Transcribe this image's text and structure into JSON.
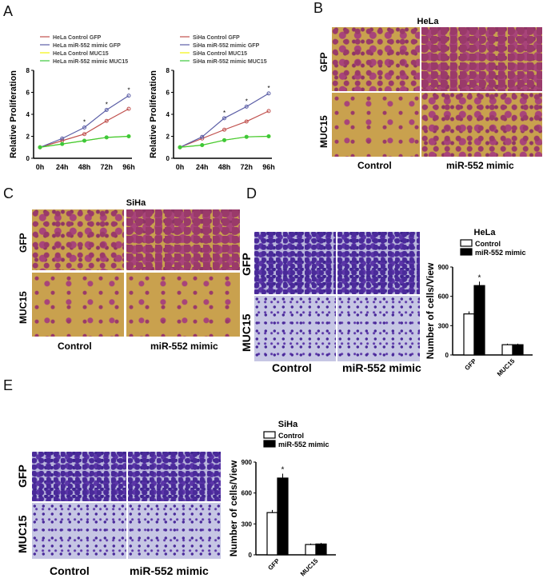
{
  "panels": {
    "a": "A",
    "b": "B",
    "c": "C",
    "d": "D",
    "e": "E"
  },
  "images": {
    "b": {
      "title": "HeLa",
      "rows": [
        "GFP",
        "MUC15"
      ],
      "cols": [
        "Control",
        "miR-552 mimic"
      ]
    },
    "c": {
      "title": "SiHa",
      "rows": [
        "GFP",
        "MUC15"
      ],
      "cols": [
        "Control",
        "miR-552 mimic"
      ]
    },
    "d": {
      "rows": [
        "GFP",
        "MUC15"
      ],
      "cols": [
        "Control",
        "miR-552 mimic"
      ]
    },
    "e": {
      "rows": [
        "GFP",
        "MUC15"
      ],
      "cols": [
        "Control",
        "miR-552 mimic"
      ]
    }
  },
  "colors": {
    "control_gfp": "#c0504d",
    "mimic_gfp": "#5b5ea6",
    "control_muc15": "#f2f20a",
    "mimic_muc15": "#3cc83c"
  },
  "chart_data": [
    {
      "type": "line",
      "ylabel": "Relative Proliferation",
      "categories": [
        "0h",
        "24h",
        "48h",
        "72h",
        "96h"
      ],
      "ylim": [
        0,
        8
      ],
      "yticks": [
        0,
        2,
        4,
        6,
        8
      ],
      "legend": "top-left",
      "series": [
        {
          "name": "HeLa Control GFP",
          "values": [
            1,
            1.6,
            2.2,
            3.4,
            4.5
          ]
        },
        {
          "name": "HeLa miR-552 mimic GFP",
          "values": [
            1,
            1.8,
            2.8,
            4.4,
            5.7
          ]
        },
        {
          "name": "HeLa Control MUC15",
          "values": [
            1,
            1.3,
            1.6,
            1.9,
            2.0
          ]
        },
        {
          "name": "HeLa miR-552 mimic MUC15",
          "values": [
            1,
            1.3,
            1.6,
            1.9,
            2.0
          ]
        }
      ],
      "annotations": [
        "*",
        "*",
        "*"
      ]
    },
    {
      "type": "line",
      "ylabel": "Relative Proliferation",
      "categories": [
        "0h",
        "24h",
        "48h",
        "72h",
        "96h"
      ],
      "ylim": [
        0,
        8
      ],
      "yticks": [
        0,
        2,
        4,
        6,
        8
      ],
      "legend": "top-left",
      "series": [
        {
          "name": "SiHa Control GFP",
          "values": [
            1,
            1.8,
            2.6,
            3.35,
            4.3
          ]
        },
        {
          "name": "SiHa miR-552 mimic GFP",
          "values": [
            1,
            1.95,
            3.65,
            4.7,
            5.9
          ]
        },
        {
          "name": "SiHa Control MUC15",
          "values": [
            1,
            1.2,
            1.65,
            1.95,
            2.0
          ]
        },
        {
          "name": "SiHa miR-552 mimic MUC15",
          "values": [
            1,
            1.2,
            1.65,
            1.95,
            2.0
          ]
        }
      ],
      "annotations": [
        "*",
        "*",
        "*"
      ]
    },
    {
      "type": "bar",
      "title": "HeLa",
      "ylabel": "Number of cells/View",
      "categories": [
        "GFP",
        "MUC15"
      ],
      "ylim": [
        0,
        900
      ],
      "yticks": [
        0,
        300,
        600,
        900
      ],
      "legend": "top",
      "series": [
        {
          "name": "Control",
          "values": [
            420,
            105
          ]
        },
        {
          "name": "miR-552 mimic",
          "values": [
            710,
            105
          ]
        }
      ],
      "annotations": [
        "*"
      ]
    },
    {
      "type": "bar",
      "title": "SiHa",
      "ylabel": "Number of cells/View",
      "categories": [
        "GFP",
        "MUC15"
      ],
      "ylim": [
        0,
        900
      ],
      "yticks": [
        0,
        300,
        600,
        900
      ],
      "legend": "top",
      "series": [
        {
          "name": "Control",
          "values": [
            410,
            100
          ]
        },
        {
          "name": "miR-552 mimic",
          "values": [
            745,
            105
          ]
        }
      ],
      "annotations": [
        "*"
      ]
    }
  ]
}
